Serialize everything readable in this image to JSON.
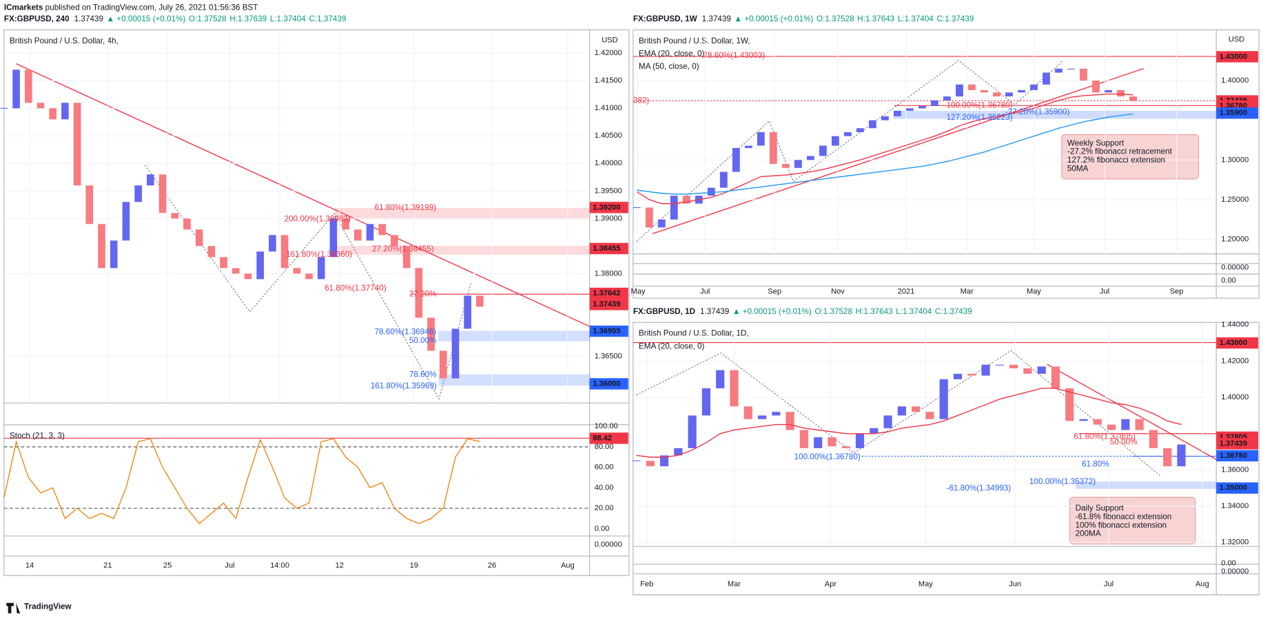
{
  "header": {
    "publisher": "ICmarkets",
    "published": " published on TradingView.com, July 26, 2021 01:56:36 BST"
  },
  "footer": {
    "logo": "TradingView"
  },
  "chart_data": [
    {
      "type": "candlestick",
      "symbol": "FX:GBPUSD, 240",
      "last": "1.37439",
      "change": "▲ +0.00015 (+0.01%)",
      "ohlc": [
        "O:1.37528",
        "H:1.37639",
        "L:1.37404",
        "C:1.37439"
      ],
      "title": "British Pound / U.S. Dollar, 4h,",
      "currency": "USD",
      "up_color": "#6366f1",
      "down_color": "#f77b80",
      "close": [
        1.41,
        1.417,
        1.411,
        1.41,
        1.408,
        1.411,
        1.396,
        1.389,
        1.381,
        1.386,
        1.393,
        1.396,
        1.398,
        1.391,
        1.39,
        1.388,
        1.385,
        1.383,
        1.381,
        1.38,
        1.379,
        1.384,
        1.387,
        1.381,
        1.38,
        1.379,
        1.383,
        1.39,
        1.388,
        1.386,
        1.389,
        1.387,
        1.385,
        1.381,
        1.372,
        1.366,
        1.361,
        1.37,
        1.376,
        1.374
      ],
      "series": [],
      "xlim": [
        0,
        48
      ],
      "ylim": [
        1.35652,
        1.42424
      ],
      "yticks": [
        {
          "value": 1.42,
          "label": "1.42000"
        },
        {
          "value": 1.415,
          "label": "1.41500"
        },
        {
          "value": 1.41,
          "label": "1.41000"
        },
        {
          "value": 1.405,
          "label": "1.40500"
        },
        {
          "value": 1.4,
          "label": "1.40000"
        },
        {
          "value": 1.395,
          "label": "1.39500"
        },
        {
          "value": 1.39,
          "label": "1.39000"
        },
        {
          "value": 1.38,
          "label": "1.38000"
        },
        {
          "value": 1.365,
          "label": "1.36500"
        }
      ],
      "xticks": [
        {
          "value": 2.1,
          "label": "14"
        },
        {
          "value": 8.5,
          "label": "21"
        },
        {
          "value": 13.4,
          "label": "25"
        },
        {
          "value": 18.5,
          "label": "Jul"
        },
        {
          "value": 22.6,
          "label": "14:00"
        },
        {
          "value": 27.5,
          "label": "12"
        },
        {
          "value": 33.6,
          "label": "19"
        },
        {
          "value": 40,
          "label": "26"
        },
        {
          "value": 46.2,
          "label": "Aug"
        }
      ],
      "price_labels": [
        {
          "value": 1.392,
          "label": "1.39200",
          "color": "#f23645"
        },
        {
          "value": 1.38455,
          "label": "1.38455",
          "color": "#f23645"
        },
        {
          "value": 1.37642,
          "label": "1.37642",
          "color": "#f23645"
        },
        {
          "value": 1.37439,
          "label": "1.37439",
          "color": "#f23645"
        },
        {
          "value": 1.36955,
          "label": "1.36955",
          "color": "#2962ff"
        },
        {
          "value": 1.36,
          "label": "1.36000",
          "color": "#2962ff"
        }
      ],
      "annotations": [
        "61.80%(1.39199)",
        "200.00%(1.38983)",
        "27.20%(1.38455)",
        "161.80%(1.38360)",
        "61.80%(1.37740)",
        "27.20%",
        "78.60%(1.36946)",
        "50.00%",
        "78.60%",
        "161.80%(1.35969)"
      ],
      "extra_labels": [
        "0.00000"
      ],
      "oscillator": {
        "name": "Stoch (21, 3, 3)",
        "color": "#f57c00",
        "values": [
          30,
          85,
          50,
          35,
          40,
          10,
          20,
          10,
          15,
          10,
          40,
          85,
          88,
          60,
          40,
          20,
          5,
          15,
          25,
          10,
          50,
          87,
          60,
          30,
          20,
          25,
          85,
          88,
          70,
          60,
          40,
          45,
          20,
          10,
          5,
          10,
          20,
          70,
          88,
          85
        ],
        "ylim": [
          -7.1,
          120.5
        ],
        "yticks": [
          {
            "value": 100,
            "label": "100.00"
          },
          {
            "value": 80,
            "label": "80.00"
          },
          {
            "value": 60,
            "label": "60.00"
          },
          {
            "value": 40,
            "label": "40.00"
          },
          {
            "value": 20,
            "label": "20.00"
          },
          {
            "value": 0,
            "label": "0.00"
          }
        ],
        "levels": [
          80,
          20
        ],
        "last": 88.42,
        "last_label": "88.42"
      }
    },
    {
      "type": "candlestick",
      "symbol": "FX:GBPUSD, 1W",
      "last": "1.37439",
      "change": "▲ +0.00015 (+0.01%)",
      "ohlc": [
        "O:1.37528",
        "H:1.37643",
        "L:1.37404",
        "C:1.37439"
      ],
      "title": "British Pound / U.S. Dollar, 1W,",
      "currency": "USD",
      "up_color": "#6366f1",
      "down_color": "#f77b80",
      "close": [
        1.24,
        1.215,
        1.225,
        1.255,
        1.245,
        1.255,
        1.265,
        1.285,
        1.315,
        1.318,
        1.335,
        1.295,
        1.29,
        1.3,
        1.305,
        1.318,
        1.33,
        1.335,
        1.34,
        1.35,
        1.355,
        1.362,
        1.365,
        1.368,
        1.375,
        1.38,
        1.395,
        1.388,
        1.385,
        1.38,
        1.385,
        1.388,
        1.395,
        1.41,
        1.415,
        1.415,
        1.4,
        1.385,
        1.388,
        1.38,
        1.374
      ],
      "series": [
        {
          "name": "EMA (20, close, 0)",
          "color": "#f23645",
          "values": [
            1.26,
            1.25,
            1.245,
            1.245,
            1.247,
            1.25,
            1.253,
            1.258,
            1.265,
            1.272,
            1.279,
            1.28,
            1.281,
            1.283,
            1.285,
            1.288,
            1.292,
            1.296,
            1.3,
            1.305,
            1.31,
            1.315,
            1.32,
            1.325,
            1.33,
            1.336,
            1.343,
            1.348,
            1.352,
            1.355,
            1.358,
            1.361,
            1.365,
            1.37,
            1.375,
            1.379,
            1.381,
            1.382,
            1.383,
            1.383,
            1.382
          ]
        },
        {
          "name": "MA (50, close, 0)",
          "color": "#2196f3",
          "values": [
            1.262,
            1.26,
            1.258,
            1.257,
            1.257,
            1.258,
            1.259,
            1.26,
            1.262,
            1.264,
            1.266,
            1.268,
            1.27,
            1.272,
            1.274,
            1.276,
            1.278,
            1.28,
            1.282,
            1.284,
            1.286,
            1.288,
            1.29,
            1.292,
            1.295,
            1.298,
            1.302,
            1.306,
            1.31,
            1.315,
            1.32,
            1.325,
            1.33,
            1.335,
            1.34,
            1.344,
            1.348,
            1.351,
            1.354,
            1.356,
            1.358
          ]
        }
      ],
      "xlim": [
        -0.3,
        46.7
      ],
      "ylim": [
        1.1817,
        1.4639
      ],
      "yticks": [
        {
          "value": 1.4,
          "label": "1.40000"
        },
        {
          "value": 1.3,
          "label": "1.30000"
        },
        {
          "value": 1.25,
          "label": "1.25000"
        },
        {
          "value": 1.2,
          "label": "1.20000"
        }
      ],
      "xticks": [
        {
          "value": 0.1,
          "label": "May"
        },
        {
          "value": 5.5,
          "label": "Jul"
        },
        {
          "value": 11.1,
          "label": "Sep"
        },
        {
          "value": 16.2,
          "label": "Nov"
        },
        {
          "value": 21.7,
          "label": "2021"
        },
        {
          "value": 26.6,
          "label": "Mar"
        },
        {
          "value": 32,
          "label": "May"
        },
        {
          "value": 37.7,
          "label": "Jul"
        },
        {
          "value": 43.5,
          "label": "Sep"
        }
      ],
      "price_labels": [
        {
          "value": 1.43,
          "label": "1.43000",
          "color": "#f23645"
        },
        {
          "value": 1.37439,
          "label": "1.37439",
          "color": "#f23645"
        },
        {
          "value": 1.3678,
          "label": "1.36780",
          "color": "#f23645"
        },
        {
          "value": 1.359,
          "label": "1.35900",
          "color": "#2962ff"
        }
      ],
      "annotations": [
        "78.60%(1.43003)",
        "382)",
        "100.00%(1.36780)",
        "-27.20%(1.35900)",
        "127.20%(1.35223)"
      ],
      "callout": [
        "Weekly Support",
        "-27.2% fibonacci retracement",
        "127.2% fibonacci extension",
        "50MA"
      ],
      "extra_labels": [
        "0.00000",
        "0.00"
      ]
    },
    {
      "type": "candlestick",
      "symbol": "FX:GBPUSD, 1D",
      "last": "1.37439",
      "change": "▲ +0.00015 (+0.01%)",
      "ohlc": [
        "O:1.37528",
        "H:1.37643",
        "L:1.37404",
        "C:1.37439"
      ],
      "title": "British Pound / U.S. Dollar, 1D,",
      "currency": "USD",
      "up_color": "#6366f1",
      "down_color": "#f77b80",
      "close": [
        1.365,
        1.362,
        1.368,
        1.372,
        1.39,
        1.405,
        1.415,
        1.395,
        1.388,
        1.39,
        1.392,
        1.382,
        1.372,
        1.378,
        1.373,
        1.372,
        1.38,
        1.383,
        1.39,
        1.395,
        1.392,
        1.388,
        1.41,
        1.413,
        1.412,
        1.418,
        1.418,
        1.416,
        1.413,
        1.417,
        1.405,
        1.387,
        1.388,
        1.385,
        1.382,
        1.388,
        1.382,
        1.372,
        1.362,
        1.374
      ],
      "series": [
        {
          "name": "EMA (20, close, 0)",
          "color": "#f23645",
          "values": [
            1.368,
            1.367,
            1.367,
            1.368,
            1.371,
            1.375,
            1.38,
            1.382,
            1.383,
            1.384,
            1.385,
            1.385,
            1.383,
            1.382,
            1.381,
            1.38,
            1.38,
            1.38,
            1.381,
            1.383,
            1.384,
            1.385,
            1.387,
            1.39,
            1.393,
            1.396,
            1.399,
            1.401,
            1.403,
            1.405,
            1.405,
            1.403,
            1.401,
            1.399,
            1.397,
            1.396,
            1.394,
            1.391,
            1.387,
            1.385
          ]
        }
      ],
      "xlim": [
        -0.23,
        41.5
      ],
      "ylim": [
        1.31778,
        1.44133
      ],
      "yticks": [
        {
          "value": 1.44,
          "label": "1.44000"
        },
        {
          "value": 1.42,
          "label": "1.42000"
        },
        {
          "value": 1.4,
          "label": "1.40000"
        },
        {
          "value": 1.36,
          "label": "1.36000"
        },
        {
          "value": 1.34,
          "label": "1.34000"
        },
        {
          "value": 1.32,
          "label": "1.32000"
        }
      ],
      "xticks": [
        {
          "value": 0.75,
          "label": "Feb"
        },
        {
          "value": 7,
          "label": "Mar"
        },
        {
          "value": 13.9,
          "label": "Apr"
        },
        {
          "value": 20.7,
          "label": "May"
        },
        {
          "value": 27.1,
          "label": "Jun"
        },
        {
          "value": 33.8,
          "label": "Jul"
        },
        {
          "value": 40.5,
          "label": "Aug"
        }
      ],
      "price_labels": [
        {
          "value": 1.43,
          "label": "1.43000",
          "color": "#f23645"
        },
        {
          "value": 1.37805,
          "label": "1.37805",
          "color": "#f23645"
        },
        {
          "value": 1.37439,
          "label": "1.37439",
          "color": "#f23645"
        },
        {
          "value": 1.3678,
          "label": "1.36780",
          "color": "#2962ff"
        },
        {
          "value": 1.35,
          "label": "1.35000",
          "color": "#2962ff"
        }
      ],
      "annotations": [
        "100.00%(1.36780)",
        "61.80%(1.37805)",
        "50.00%",
        "61.80%",
        "100.00%(1.35372)",
        "-61.80%(1.34993)"
      ],
      "callout": [
        "Daily Support",
        "-61.8% fibonacci extension",
        "100% fibonacci extension",
        "200MA"
      ],
      "extra_labels": [
        "0.00",
        "0.00000"
      ]
    }
  ]
}
